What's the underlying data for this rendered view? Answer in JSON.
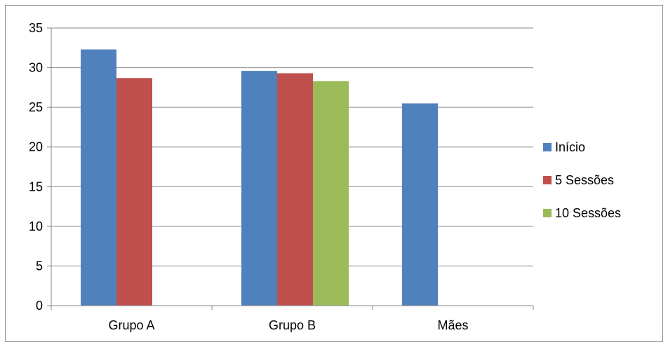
{
  "chart_data": {
    "type": "bar",
    "categories": [
      "Grupo A",
      "Grupo B",
      "Mães"
    ],
    "series": [
      {
        "name": "Início",
        "values": [
          32.3,
          29.6,
          25.5
        ],
        "color": "#4F81BD"
      },
      {
        "name": "5 Sessões",
        "values": [
          28.7,
          29.3,
          null
        ],
        "color": "#C0504D"
      },
      {
        "name": "10 Sessões",
        "values": [
          null,
          28.3,
          null
        ],
        "color": "#9BBB59"
      }
    ],
    "yticks": [
      "0",
      "5",
      "10",
      "15",
      "20",
      "25",
      "30",
      "35"
    ],
    "ylim": [
      0,
      35
    ],
    "grid": true,
    "legend_position": "right",
    "title": "",
    "xlabel": "",
    "ylabel": ""
  }
}
